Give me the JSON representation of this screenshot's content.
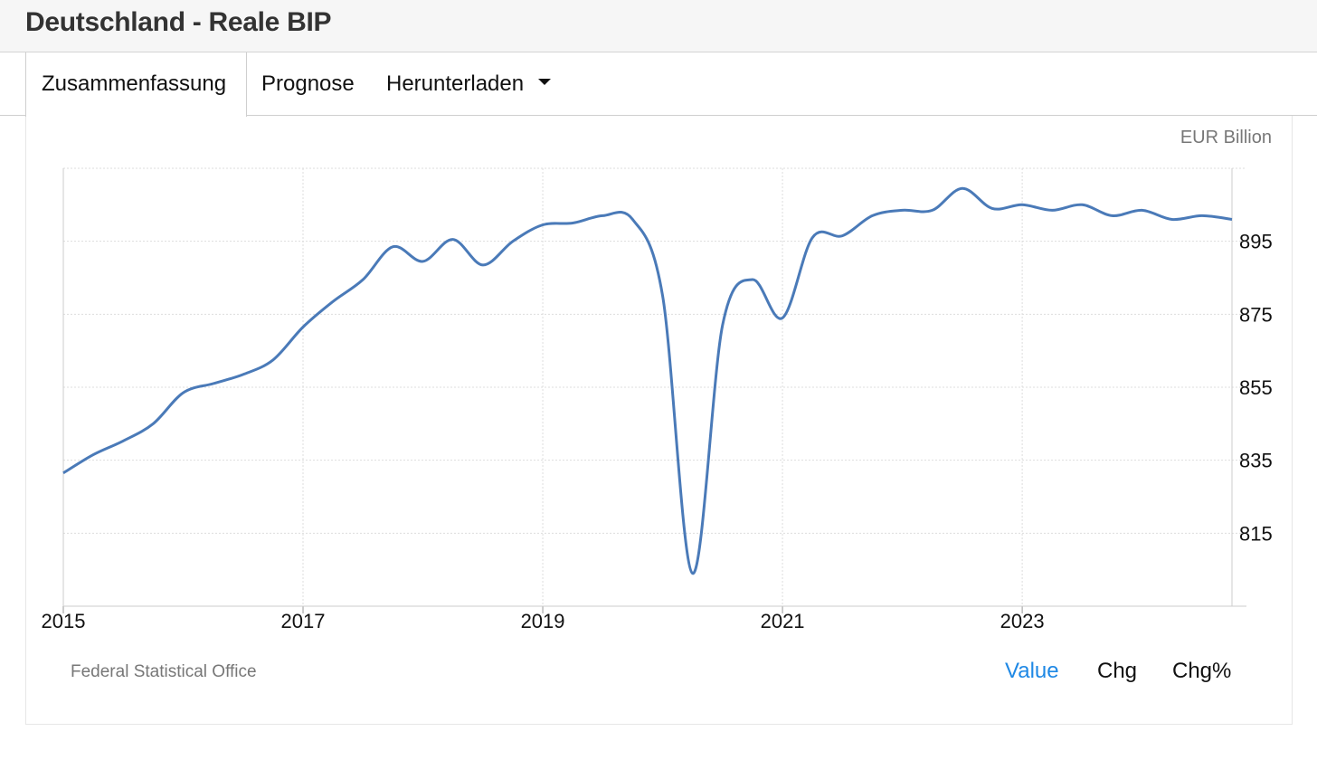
{
  "header": {
    "title": "Deutschland - Reale BIP"
  },
  "tabs": [
    {
      "label": "Zusammenfassung",
      "active": true
    },
    {
      "label": "Prognose",
      "active": false
    },
    {
      "label": "Herunterladen",
      "active": false
    }
  ],
  "footer": {
    "source": "Federal Statistical Office",
    "modes": [
      "Value",
      "Chg",
      "Chg%"
    ],
    "active_mode": "Value"
  },
  "colors": {
    "line": "#4a7ab8",
    "active_mode": "#1e88e5",
    "grid": "#dddddd"
  },
  "chart_data": {
    "type": "line",
    "unit_label": "EUR Billion",
    "x_ticks": [
      "2015",
      "2017",
      "2019",
      "2021",
      "2023"
    ],
    "y_ticks": [
      815,
      835,
      855,
      875,
      895
    ],
    "xlim": [
      2015.0,
      2024.75
    ],
    "ylim": [
      795,
      915
    ],
    "grid": true,
    "y_axis_side": "right",
    "series": [
      {
        "x": [
          2015.0,
          2015.25,
          2015.5,
          2015.75,
          2016.0,
          2016.25,
          2016.5,
          2016.75,
          2017.0,
          2017.25,
          2017.5,
          2017.75,
          2018.0,
          2018.25,
          2018.5,
          2018.75,
          2019.0,
          2019.25,
          2019.5,
          2019.75,
          2020.0,
          2020.25,
          2020.5,
          2020.75,
          2021.0,
          2021.25,
          2021.5,
          2021.75,
          2022.0,
          2022.25,
          2022.5,
          2022.75,
          2023.0,
          2023.25,
          2023.5,
          2023.75,
          2024.0,
          2024.25,
          2024.5,
          2024.75
        ],
        "values": [
          831.5,
          836.5,
          840.3,
          845.0,
          853.5,
          856.0,
          858.5,
          862.5,
          871.5,
          878.5,
          884.5,
          893.5,
          889.5,
          895.5,
          888.5,
          895.0,
          899.5,
          900.0,
          902.0,
          901.0,
          880.0,
          804.0,
          872.0,
          884.5,
          874.0,
          896.0,
          896.5,
          902.0,
          903.5,
          903.5,
          909.5,
          904.0,
          905.0,
          903.5,
          905.0,
          902.0,
          903.5,
          901.0,
          902.0,
          901.0
        ]
      }
    ]
  }
}
